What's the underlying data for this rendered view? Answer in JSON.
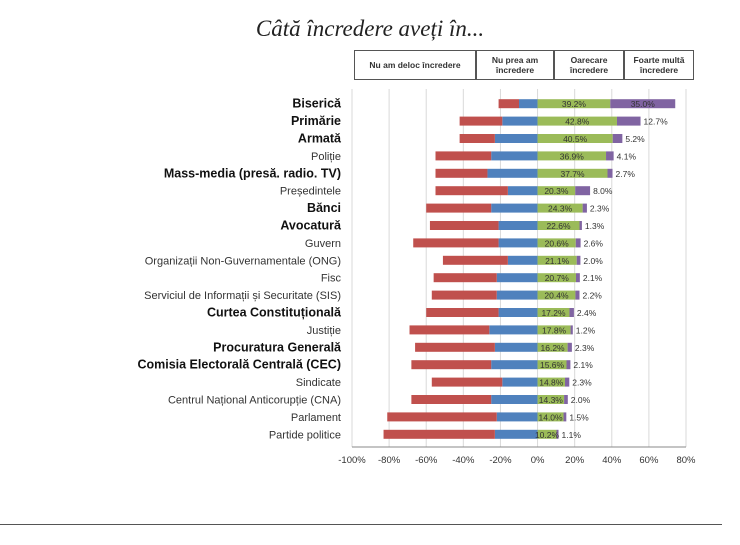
{
  "title": "Câtă încredere aveți în...",
  "legend": [
    {
      "label": "Nu am deloc încredere",
      "color": "#c0504d"
    },
    {
      "label": "Nu prea am încredere",
      "color": "#4f81bd"
    },
    {
      "label": "Oarecare încredere",
      "color": "#9bbb59"
    },
    {
      "label": "Foarte multă încredere",
      "color": "#8064a2"
    }
  ],
  "chart_data": {
    "type": "bar",
    "orientation": "horizontal",
    "stacked": "diverging",
    "categories": [
      "Biserică",
      "Primărie",
      "Armată",
      "Poliție",
      "Mass-media (presă. radio. TV)",
      "Președintele",
      "Bănci",
      "Avocatură",
      "Guvern",
      "Organizații Non-Guvernamentale (ONG)",
      "Fisc",
      "Serviciul de Informații și Securitate (SIS)",
      "Curtea Constituțională",
      "Justiție",
      "Procuratura Generală",
      "Comisia Electorală Centrală (CEC)",
      "Sindicate",
      "Centrul Național Anticorupție (CNA)",
      "Parlament",
      "Partide politice"
    ],
    "bold_categories": [
      "Biserică",
      "Primărie",
      "Armată",
      "Mass-media (presă. radio. TV)",
      "Bănci",
      "Avocatură",
      "Curtea Constituțională",
      "Procuratura Generală",
      "Comisia Electorală Centrală (CEC)"
    ],
    "series": [
      {
        "name": "Nu am deloc încredere",
        "values": [
          -11,
          -23,
          -19,
          -30,
          -28,
          -39,
          -35,
          -37,
          -46,
          -35,
          -34,
          -35,
          -39,
          -43,
          -43,
          -43,
          -38,
          -43,
          -59,
          -60
        ]
      },
      {
        "name": "Nu prea am încredere",
        "values": [
          -10,
          -19,
          -23,
          -25,
          -27,
          -16,
          -25,
          -21,
          -21,
          -16,
          -22,
          -22,
          -21,
          -26,
          -23,
          -25,
          -19,
          -25,
          -22,
          -23
        ]
      },
      {
        "name": "Oarecare încredere",
        "values": [
          39.2,
          42.8,
          40.5,
          36.9,
          37.7,
          20.3,
          24.3,
          22.6,
          20.6,
          21.1,
          20.7,
          20.4,
          17.2,
          17.8,
          16.2,
          15.6,
          14.8,
          14.3,
          14.0,
          10.2
        ]
      },
      {
        "name": "Foarte multă încredere",
        "values": [
          35.0,
          12.7,
          5.2,
          4.1,
          2.7,
          8.0,
          2.3,
          1.3,
          2.6,
          2.0,
          2.1,
          2.2,
          2.4,
          1.2,
          2.3,
          2.1,
          2.3,
          2.0,
          1.5,
          1.1
        ]
      }
    ],
    "positive_labels": [
      [
        "39.2%",
        "35.0%"
      ],
      [
        "42.8%",
        "12.7%"
      ],
      [
        "40.5%",
        "5.2%"
      ],
      [
        "36.9%",
        "4.1%"
      ],
      [
        "37.7%",
        "2.7%"
      ],
      [
        "20.3%",
        "8.0%"
      ],
      [
        "24.3%",
        "2.3%"
      ],
      [
        "22.6%",
        "1.3%"
      ],
      [
        "20.6%",
        "2.6%"
      ],
      [
        "21.1%",
        "2.0%"
      ],
      [
        "20.7%",
        "2.1%"
      ],
      [
        "20.4%",
        "2.2%"
      ],
      [
        "17.2%",
        "2.4%"
      ],
      [
        "17.8%",
        "1.2%"
      ],
      [
        "16.2%",
        "2.3%"
      ],
      [
        "15.6%",
        "2.1%"
      ],
      [
        "14.8%",
        "2.3%"
      ],
      [
        "14.3%",
        "2.0%"
      ],
      [
        "14.0%",
        "1.5%"
      ],
      [
        "10.2%",
        "1.1%"
      ]
    ],
    "xlim": [
      -100,
      80
    ],
    "xticks": [
      "-100%",
      "-80%",
      "-60%",
      "-40%",
      "-20%",
      "0%",
      "20%",
      "40%",
      "60%",
      "80%"
    ],
    "grid": true
  }
}
